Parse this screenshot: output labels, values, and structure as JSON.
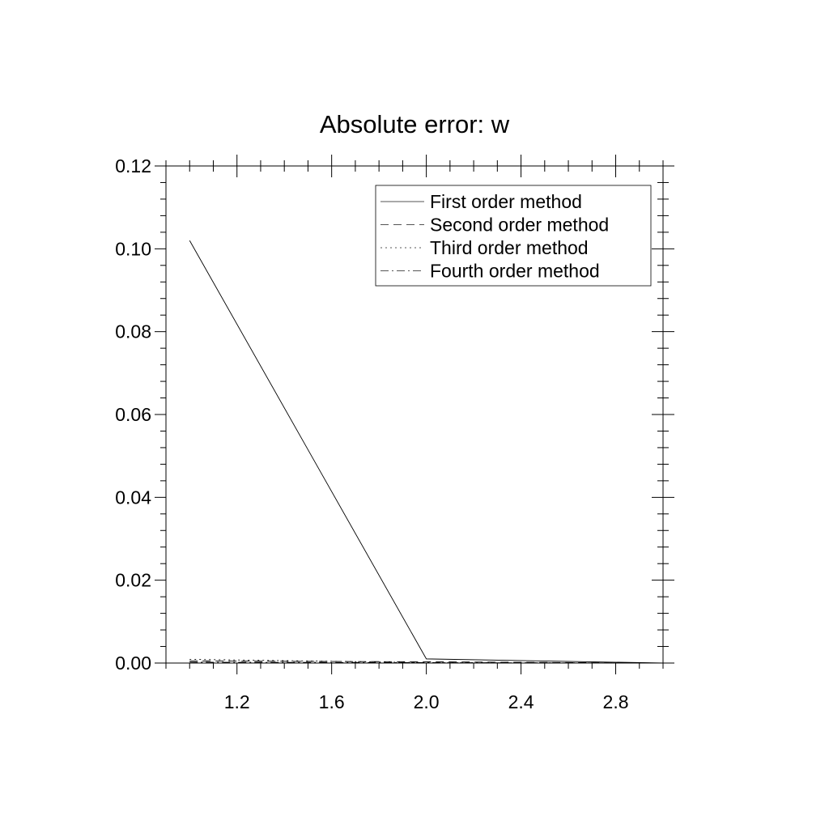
{
  "chart_data": {
    "type": "line",
    "title": "Absolute error: w",
    "xlabel": "",
    "ylabel": "",
    "xlim": [
      0.9,
      3.0
    ],
    "ylim": [
      0.0,
      0.12
    ],
    "x_ticks": [
      1.2,
      1.6,
      2.0,
      2.4,
      2.8
    ],
    "x_tick_labels": [
      "1.2",
      "1.6",
      "2.0",
      "2.4",
      "2.8"
    ],
    "y_ticks": [
      0.0,
      0.02,
      0.04,
      0.06,
      0.08,
      0.1,
      0.12
    ],
    "y_tick_labels": [
      "0.00",
      "0.02",
      "0.04",
      "0.06",
      "0.08",
      "0.10",
      "0.12"
    ],
    "grid": false,
    "legend_position": "top-right",
    "x": [
      1.0,
      2.0,
      3.0
    ],
    "series": [
      {
        "name": "First order method",
        "style": "solid",
        "values": [
          0.102,
          0.001,
          0.0
        ]
      },
      {
        "name": "Second order method",
        "style": "dashed",
        "values": [
          0.0005,
          0.0003,
          0.0
        ]
      },
      {
        "name": "Third order method",
        "style": "dotted",
        "values": [
          0.0009,
          0.0001,
          0.0
        ]
      },
      {
        "name": "Fourth order method",
        "style": "dashdot",
        "values": [
          0.0002,
          0.0001,
          0.0
        ]
      }
    ]
  }
}
